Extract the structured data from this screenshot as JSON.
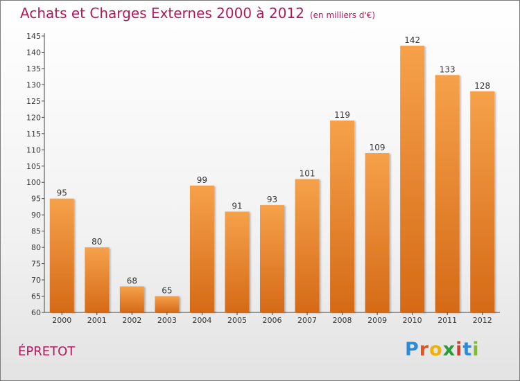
{
  "title": "Achats et Charges Externes 2000 à 2012",
  "subtitle": "(en milliers d'€)",
  "place": "ÉPRETOT",
  "logo": {
    "letters": [
      "P",
      "r",
      "o",
      "x",
      "i",
      "t",
      "i"
    ],
    "colors": [
      "#2e8ad6",
      "#e8511b",
      "#f2b100",
      "#2b9a3a",
      "#d33e2b",
      "#2e8ad6",
      "#7bbf2a"
    ]
  },
  "colors": {
    "bar_light": "#f6a14a",
    "bar_dark": "#d56a17",
    "title": "#b0195c"
  },
  "chart_data": {
    "type": "bar",
    "categories": [
      "2000",
      "2001",
      "2002",
      "2003",
      "2004",
      "2005",
      "2006",
      "2007",
      "2008",
      "2009",
      "2010",
      "2011",
      "2012"
    ],
    "values": [
      95,
      80,
      68,
      65,
      99,
      91,
      93,
      101,
      119,
      109,
      142,
      133,
      128
    ],
    "ylim": [
      60,
      145
    ],
    "yticks": [
      60,
      65,
      70,
      75,
      80,
      85,
      90,
      95,
      100,
      105,
      110,
      115,
      120,
      125,
      130,
      135,
      140,
      145
    ],
    "grid": false,
    "xlabel": "",
    "ylabel": ""
  }
}
